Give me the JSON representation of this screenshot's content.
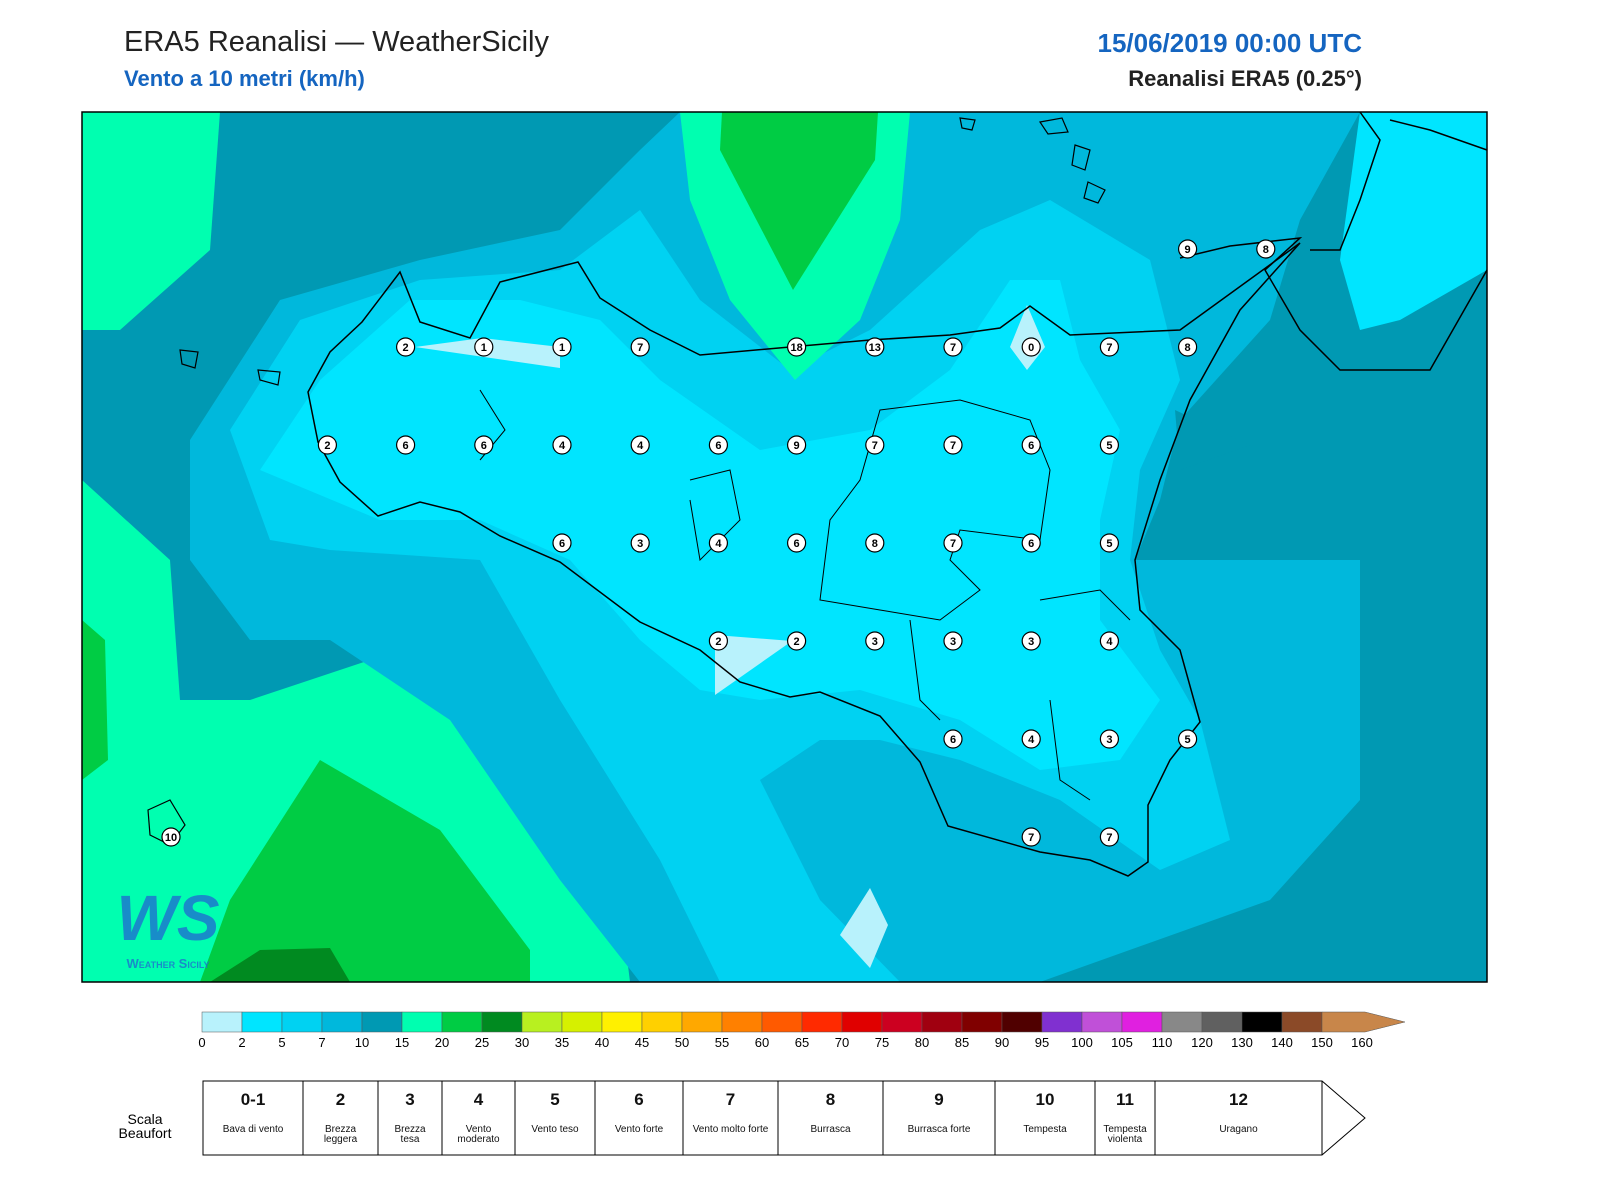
{
  "header": {
    "title": "ERA5 Reanalisi — WeatherSicily",
    "subtitle": "Vento a 10 metri (km/h)",
    "datetime": "15/06/2019 00:00 UTC",
    "source": "Reanalisi ERA5 (0.25°)"
  },
  "map": {
    "wind_grid": [
      [
        null,
        null,
        null,
        null,
        null,
        null,
        null,
        null,
        null,
        null,
        null,
        null,
        null,
        9,
        8
      ],
      [
        null,
        null,
        null,
        2,
        1,
        1,
        7,
        null,
        18,
        13,
        7,
        0,
        7,
        8,
        null
      ],
      [
        null,
        null,
        2,
        6,
        6,
        4,
        4,
        6,
        9,
        7,
        7,
        6,
        5,
        null,
        null
      ],
      [
        null,
        null,
        null,
        null,
        null,
        6,
        3,
        4,
        6,
        8,
        7,
        6,
        5,
        null,
        null
      ],
      [
        null,
        null,
        null,
        null,
        null,
        null,
        null,
        2,
        2,
        3,
        3,
        3,
        4,
        null,
        null
      ],
      [
        null,
        null,
        null,
        null,
        null,
        null,
        null,
        null,
        null,
        null,
        6,
        4,
        3,
        5,
        null
      ],
      [
        10,
        null,
        null,
        null,
        null,
        null,
        null,
        null,
        null,
        null,
        null,
        7,
        7,
        null,
        null
      ]
    ]
  },
  "logo": {
    "mark": "WS",
    "name": "Weather Sicily"
  },
  "colorbar": {
    "ticks": [
      0,
      2,
      5,
      7,
      10,
      15,
      20,
      25,
      30,
      35,
      40,
      45,
      50,
      55,
      60,
      65,
      70,
      75,
      80,
      85,
      90,
      95,
      100,
      105,
      110,
      120,
      130,
      140,
      150,
      160
    ],
    "colors": [
      "#b8f2fc",
      "#00e5ff",
      "#00d2f2",
      "#00b8dc",
      "#0099b3",
      "#00ffb0",
      "#00cc44",
      "#008a20",
      "#b8f020",
      "#d6f000",
      "#fff000",
      "#ffd000",
      "#ffa800",
      "#ff8000",
      "#ff5a00",
      "#ff2a00",
      "#e00000",
      "#cc0020",
      "#a00010",
      "#800000",
      "#500000",
      "#8030d0",
      "#c050d8",
      "#e020e0",
      "#888888",
      "#606060",
      "#000000",
      "#8b4a28",
      "#c8864a"
    ]
  },
  "beaufort": {
    "title": "Scala Beaufort",
    "levels": [
      {
        "force": "0-1",
        "label": "Bava di vento"
      },
      {
        "force": "2",
        "label": "Brezza leggera"
      },
      {
        "force": "3",
        "label": "Brezza tesa"
      },
      {
        "force": "4",
        "label": "Vento moderato"
      },
      {
        "force": "5",
        "label": "Vento teso"
      },
      {
        "force": "6",
        "label": "Vento forte"
      },
      {
        "force": "7",
        "label": "Vento molto forte"
      },
      {
        "force": "8",
        "label": "Burrasca"
      },
      {
        "force": "9",
        "label": "Burrasca forte"
      },
      {
        "force": "10",
        "label": "Tempesta"
      },
      {
        "force": "11",
        "label": "Tempesta violenta"
      },
      {
        "force": "12",
        "label": "Uragano"
      }
    ]
  }
}
